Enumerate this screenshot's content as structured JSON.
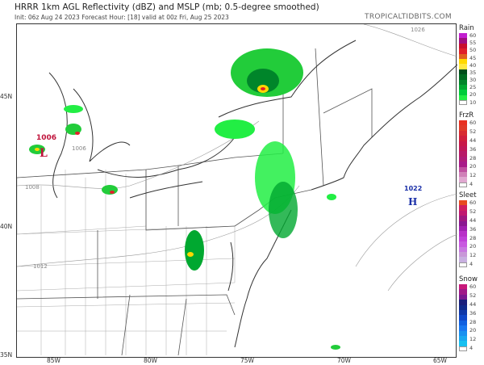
{
  "header": {
    "title": "HRRR 1km AGL Reflectivity (dBZ) and MSLP (mb; 0.5-degree smoothed)",
    "subtitle": "Init: 06z Aug 24 2023   Forecast Hour: [18]   valid at 00z Fri, Aug 25 2023",
    "brand": "TROPICALTIDBITS.COM"
  },
  "axes": {
    "lat_labels": [
      "45N",
      "40N",
      "35N"
    ],
    "lon_labels": [
      "85W",
      "80W",
      "75W",
      "70W",
      "65W"
    ]
  },
  "pressure_centers": [
    {
      "type": "L",
      "value": "1006",
      "color": "#c0143c"
    },
    {
      "type": "H",
      "value": "1022",
      "color": "#1a2fa8"
    }
  ],
  "isobar_labels": [
    "1006",
    "1008",
    "1012",
    "1026"
  ],
  "legends": [
    {
      "title": "Rain",
      "levels": [
        "60",
        "55",
        "50",
        "45",
        "40",
        "35",
        "30",
        "25",
        "20",
        "10"
      ],
      "colors": [
        "#c21fd0",
        "#a01080",
        "#c8102e",
        "#e0202a",
        "#e06020",
        "#ffd800",
        "#ffe840",
        "#004d1a",
        "#006a20",
        "#00852a",
        "#00a830",
        "#00cc3a",
        "#22ee44",
        "#ffffff"
      ]
    },
    {
      "title": "FrzR",
      "levels": [
        "60",
        "52",
        "44",
        "36",
        "28",
        "20",
        "12",
        "4"
      ],
      "colors": [
        "#e83020",
        "#e03a28",
        "#d82a30",
        "#d01e3c",
        "#c81848",
        "#c01858",
        "#b81a68",
        "#b01c78",
        "#a81a88",
        "#c050a0",
        "#d080b8",
        "#e0a8d0",
        "#ffffff"
      ]
    },
    {
      "title": "Sleet",
      "levels": [
        "60",
        "52",
        "44",
        "36",
        "28",
        "20",
        "12",
        "4"
      ],
      "colors": [
        "#e84a20",
        "#d01e60",
        "#c01870",
        "#a01880",
        "#8a1890",
        "#a020b0",
        "#b830c8",
        "#c040d8",
        "#c858e0",
        "#c878e0",
        "#c898d8",
        "#c8b0e0",
        "#ffffff"
      ]
    },
    {
      "title": "Snow",
      "levels": [
        "60",
        "52",
        "44",
        "36",
        "28",
        "20",
        "12",
        "4"
      ],
      "colors": [
        "#c8187a",
        "#a01888",
        "#7a1890",
        "#1a1e7a",
        "#102a8a",
        "#1038a8",
        "#1048c8",
        "#1060e0",
        "#1878f0",
        "#1890f0",
        "#18a8f0",
        "#18c0f0",
        "#ffffff"
      ]
    }
  ]
}
